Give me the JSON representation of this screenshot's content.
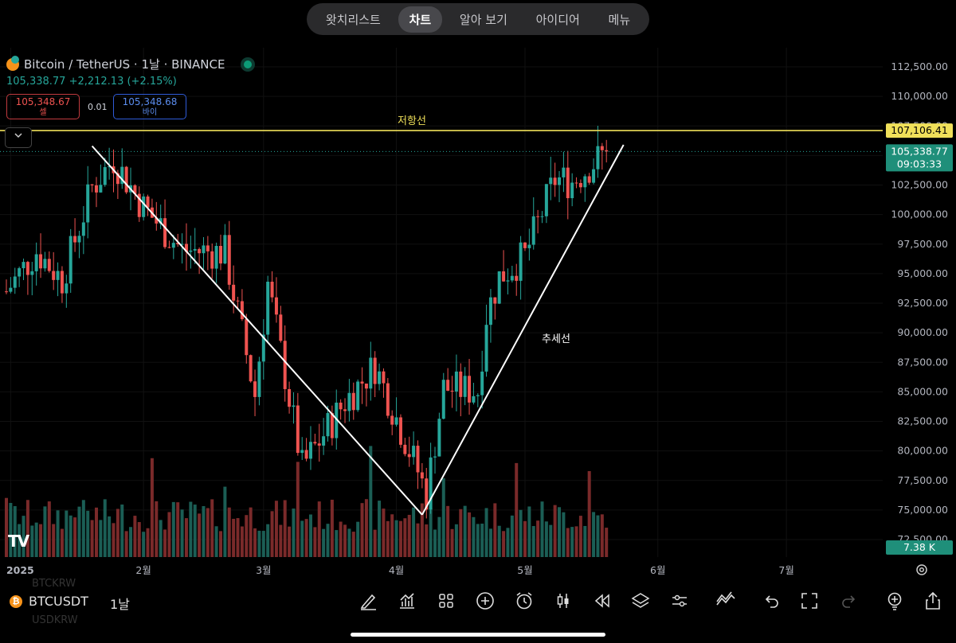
{
  "tabs": [
    "왓치리스트",
    "차트",
    "알아 보기",
    "아이디어",
    "메뉴"
  ],
  "active_tab": 1,
  "legend": {
    "title": "Bitcoin / TetherUS · 1날 · BINANCE",
    "ohlc": "105,338.77  +2,212.13 (+2.15%)",
    "sell_price": "105,348.67",
    "sell_label": "셀",
    "buy_price": "105,348.68",
    "buy_label": "바이",
    "spread": "0.01"
  },
  "annotations": {
    "resistance": "저항선",
    "trend": "추세선"
  },
  "price_labels": {
    "resistance_tag": "107,106.41",
    "last_tag": "105,338.77",
    "countdown": "09:03:33",
    "volume_tag": "7.38 K"
  },
  "chart_data": {
    "type": "candlestick",
    "title": "Bitcoin / TetherUS · 1날 · BINANCE",
    "y_axis": {
      "min": 72500,
      "max": 112500,
      "ticks": [
        "112,500.00",
        "110,000.00",
        "107,500.00",
        "105,000.00",
        "102,500.00",
        "100,000.00",
        "97,500.00",
        "95,000.00",
        "92,500.00",
        "90,000.00",
        "87,500.00",
        "85,000.00",
        "82,500.00",
        "80,000.00",
        "77,500.00",
        "75,000.00",
        "72,500.00"
      ]
    },
    "x_axis": {
      "ticks": [
        "2025",
        "2월",
        "3월",
        "4월",
        "5월",
        "6월",
        "7월"
      ]
    },
    "series": [
      {
        "name": "close",
        "key_points": [
          [
            "2024-12-31",
            93500
          ],
          [
            "2025-01-07",
            96900
          ],
          [
            "2025-01-13",
            94500
          ],
          [
            "2025-01-20",
            102300
          ],
          [
            "2025-01-25",
            104700
          ],
          [
            "2025-02-01",
            100600
          ],
          [
            "2025-02-10",
            97000
          ],
          [
            "2025-02-20",
            96800
          ],
          [
            "2025-02-27",
            84700
          ],
          [
            "2025-03-02",
            94200
          ],
          [
            "2025-03-10",
            78600
          ],
          [
            "2025-03-20",
            84200
          ],
          [
            "2025-03-27",
            87200
          ],
          [
            "2025-04-06",
            78300
          ],
          [
            "2025-04-08",
            76300
          ],
          [
            "2025-04-12",
            85300
          ],
          [
            "2025-04-20",
            85100
          ],
          [
            "2025-04-22",
            91500
          ],
          [
            "2025-04-25",
            94700
          ],
          [
            "2025-05-01",
            96500
          ],
          [
            "2025-05-08",
            103000
          ],
          [
            "2025-05-12",
            102800
          ],
          [
            "2025-05-20",
            105338.77
          ]
        ]
      }
    ],
    "horizontal_lines": [
      {
        "name": "저항선",
        "value": 107106.41,
        "color": "#f0e05a"
      }
    ],
    "trend_lines": [
      {
        "from": [
          "2025-01-20",
          105800
        ],
        "to": [
          "2025-04-07",
          74600
        ]
      },
      {
        "from": [
          "2025-04-07",
          74600
        ],
        "to": [
          "2025-05-24",
          105900
        ]
      }
    ],
    "colors": {
      "up": "#26a69a",
      "down": "#ef5350"
    }
  },
  "toolbar": {
    "symbol": "BTCUSDT",
    "interval": "1날",
    "ghost_1": "BTCKRW",
    "ghost_2": "USDKRW",
    "icons": [
      "pen-icon",
      "chart-icon",
      "grid-icon",
      "plus-icon",
      "alarm-icon",
      "candle-icon",
      "replay-icon",
      "layers-icon",
      "settings-icon",
      "trend-icon",
      "undo-icon",
      "fullscreen-icon",
      "redo-icon",
      "idea-icon",
      "share-icon"
    ]
  }
}
